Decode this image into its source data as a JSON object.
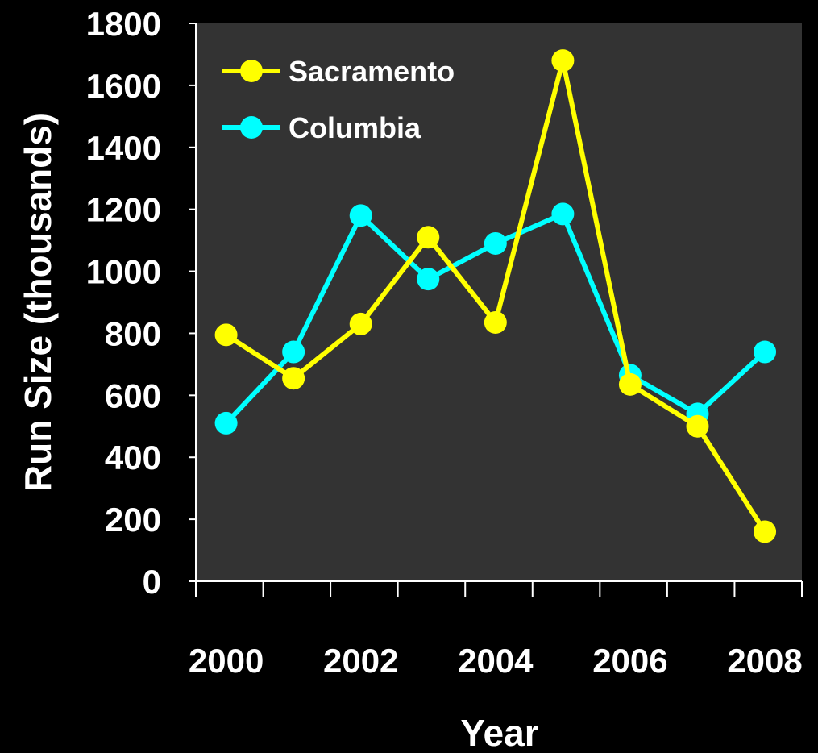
{
  "chart_data": {
    "type": "line",
    "title": "",
    "xlabel": "Year",
    "ylabel": "Run Size (thousands)",
    "x": [
      2000,
      2001,
      2002,
      2003,
      2004,
      2005,
      2006,
      2007,
      2008
    ],
    "xticks": [
      "2000",
      "2002",
      "2004",
      "2006",
      "2008"
    ],
    "ylim": [
      0,
      1800
    ],
    "yticks": [
      "0",
      "200",
      "400",
      "600",
      "800",
      "1000",
      "1200",
      "1400",
      "1600",
      "1800"
    ],
    "grid": false,
    "legend_position": "top-left",
    "plot_background": "#333333",
    "page_background": "#000000",
    "series": [
      {
        "name": "Sacramento",
        "color": "#ffff00",
        "values": [
          795,
          655,
          830,
          1110,
          835,
          1680,
          635,
          500,
          160
        ]
      },
      {
        "name": "Columbia",
        "color": "#00ffff",
        "values": [
          510,
          740,
          1180,
          975,
          1090,
          1185,
          665,
          540,
          740
        ]
      }
    ]
  }
}
